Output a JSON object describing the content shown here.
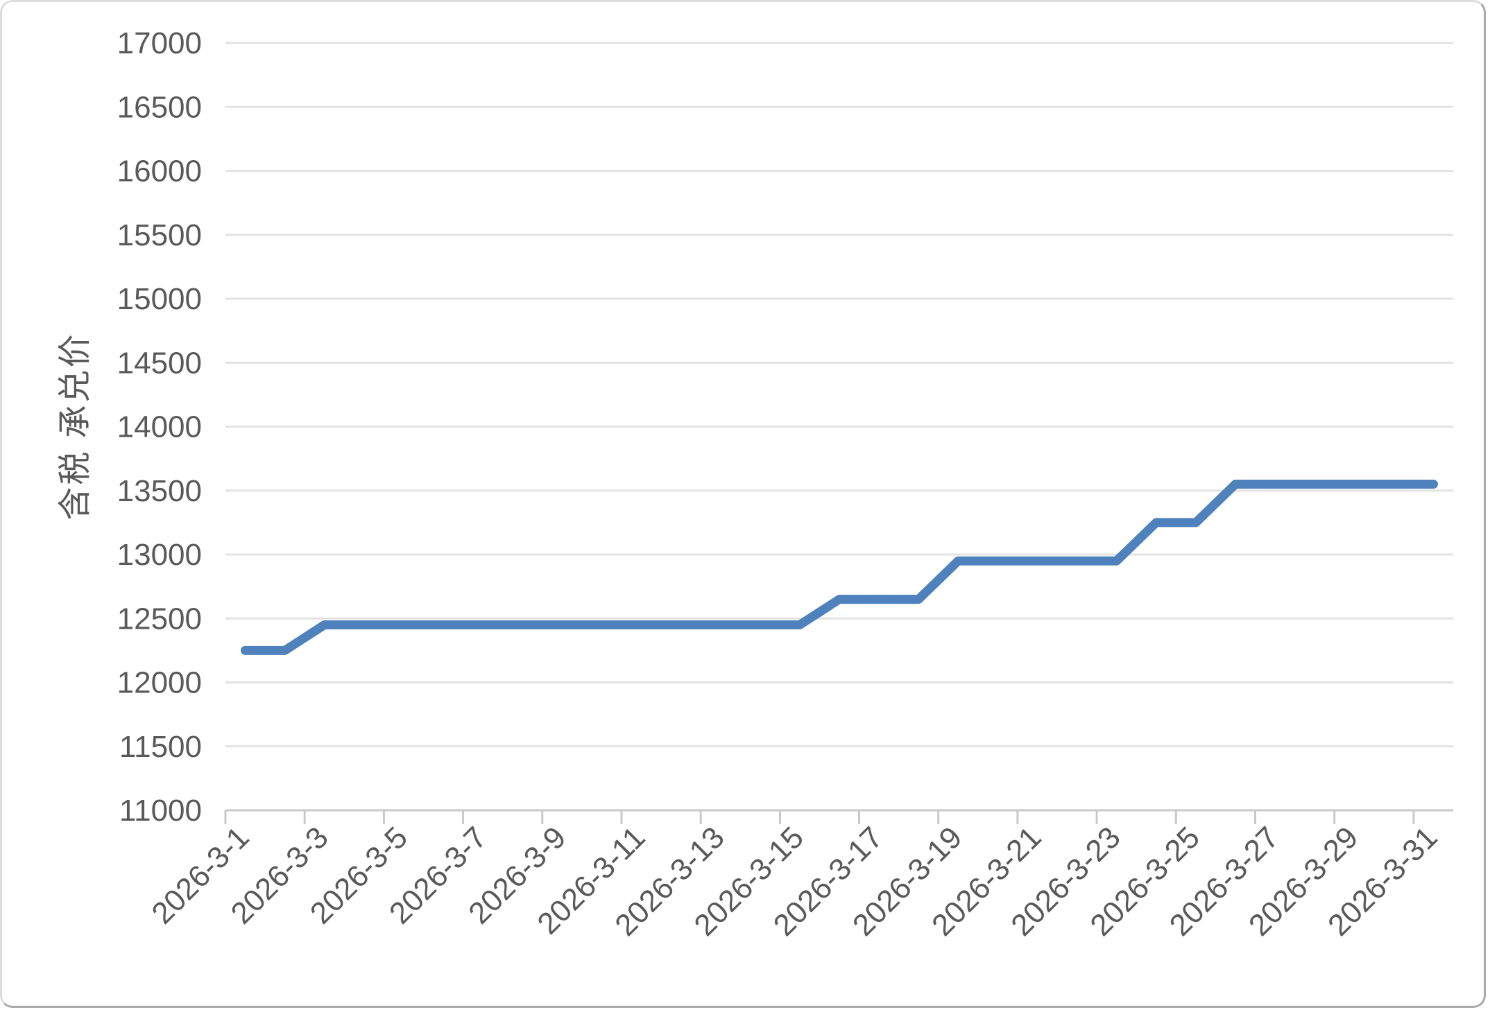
{
  "chart_data": {
    "type": "line",
    "title": "",
    "xlabel": "",
    "ylabel": "含税 承兑价",
    "x": [
      "2026-3-1",
      "2026-3-2",
      "2026-3-3",
      "2026-3-4",
      "2026-3-5",
      "2026-3-6",
      "2026-3-7",
      "2026-3-8",
      "2026-3-9",
      "2026-3-10",
      "2026-3-11",
      "2026-3-12",
      "2026-3-13",
      "2026-3-14",
      "2026-3-15",
      "2026-3-16",
      "2026-3-17",
      "2026-3-18",
      "2026-3-19",
      "2026-3-20",
      "2026-3-21",
      "2026-3-22",
      "2026-3-23",
      "2026-3-24",
      "2026-3-25",
      "2026-3-26",
      "2026-3-27",
      "2026-3-28",
      "2026-3-29",
      "2026-3-30",
      "2026-3-31"
    ],
    "values": [
      12250,
      12250,
      12450,
      12450,
      12450,
      12450,
      12450,
      12450,
      12450,
      12450,
      12450,
      12450,
      12450,
      12450,
      12450,
      12650,
      12650,
      12650,
      12950,
      12950,
      12950,
      12950,
      12950,
      13250,
      13250,
      13550,
      13550,
      13550,
      13550,
      13550,
      13550
    ],
    "x_tick_labels": [
      "2026-3-1",
      "2026-3-3",
      "2026-3-5",
      "2026-3-7",
      "2026-3-9",
      "2026-3-11",
      "2026-3-13",
      "2026-3-15",
      "2026-3-17",
      "2026-3-19",
      "2026-3-21",
      "2026-3-23",
      "2026-3-25",
      "2026-3-27",
      "2026-3-29",
      "2026-3-31"
    ],
    "x_tick_label_interval": 2,
    "y_ticks": [
      11000,
      11500,
      12000,
      12500,
      13000,
      13500,
      14000,
      14500,
      15000,
      15500,
      16000,
      16500,
      17000
    ],
    "ylim": [
      11000,
      17000
    ],
    "grid": "horizontal",
    "legend": "none",
    "colors": {
      "line": "#4F81BD",
      "grid": "#E3E3E3",
      "axis": "#C9C9C9",
      "text": "#595959"
    }
  }
}
